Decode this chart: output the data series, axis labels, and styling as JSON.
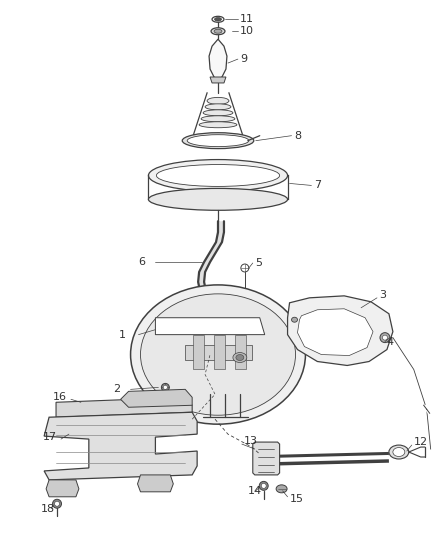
{
  "bg_color": "#ffffff",
  "line_color": "#404040",
  "label_color": "#333333",
  "lw": 0.9,
  "label_fs": 8.0
}
